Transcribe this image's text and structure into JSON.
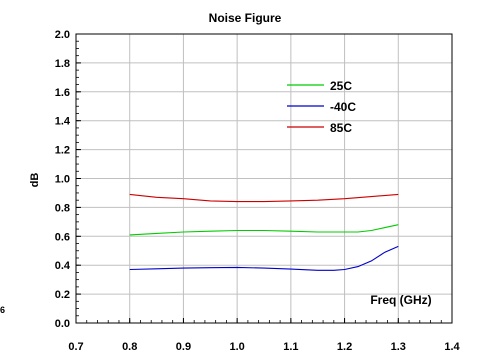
{
  "chart_data": {
    "type": "line",
    "title": "Noise Figure",
    "xlabel": "",
    "ylabel": "dB",
    "annotation": "Freq (GHz)",
    "margin_text": "6",
    "xlim": [
      0.7,
      1.4
    ],
    "ylim": [
      0.0,
      2.0
    ],
    "xticks": [
      "0.7",
      "0.8",
      "0.9",
      "1.0",
      "1.1",
      "1.2",
      "1.3",
      "1.4"
    ],
    "yticks": [
      "0.0",
      "0.2",
      "0.4",
      "0.6",
      "0.8",
      "1.0",
      "1.2",
      "1.4",
      "1.6",
      "1.8",
      "2.0"
    ],
    "grid": true,
    "legend_position": "top-right",
    "series": [
      {
        "name": "25C",
        "color": "#00cc00",
        "x": [
          0.8,
          0.85,
          0.9,
          0.95,
          1.0,
          1.05,
          1.1,
          1.15,
          1.2,
          1.225,
          1.25,
          1.275,
          1.3
        ],
        "y": [
          0.61,
          0.62,
          0.63,
          0.635,
          0.64,
          0.64,
          0.635,
          0.63,
          0.63,
          0.63,
          0.64,
          0.66,
          0.68
        ]
      },
      {
        "name": "-40C",
        "color": "#0000cc",
        "x": [
          0.8,
          0.85,
          0.9,
          0.95,
          1.0,
          1.05,
          1.1,
          1.15,
          1.18,
          1.2,
          1.225,
          1.25,
          1.275,
          1.3
        ],
        "y": [
          0.37,
          0.375,
          0.38,
          0.383,
          0.385,
          0.38,
          0.373,
          0.365,
          0.365,
          0.37,
          0.39,
          0.43,
          0.49,
          0.53
        ]
      },
      {
        "name": "85C",
        "color": "#cc0000",
        "x": [
          0.8,
          0.85,
          0.9,
          0.95,
          1.0,
          1.05,
          1.1,
          1.15,
          1.2,
          1.25,
          1.3
        ],
        "y": [
          0.89,
          0.87,
          0.86,
          0.845,
          0.84,
          0.84,
          0.845,
          0.85,
          0.86,
          0.875,
          0.89
        ]
      }
    ]
  }
}
